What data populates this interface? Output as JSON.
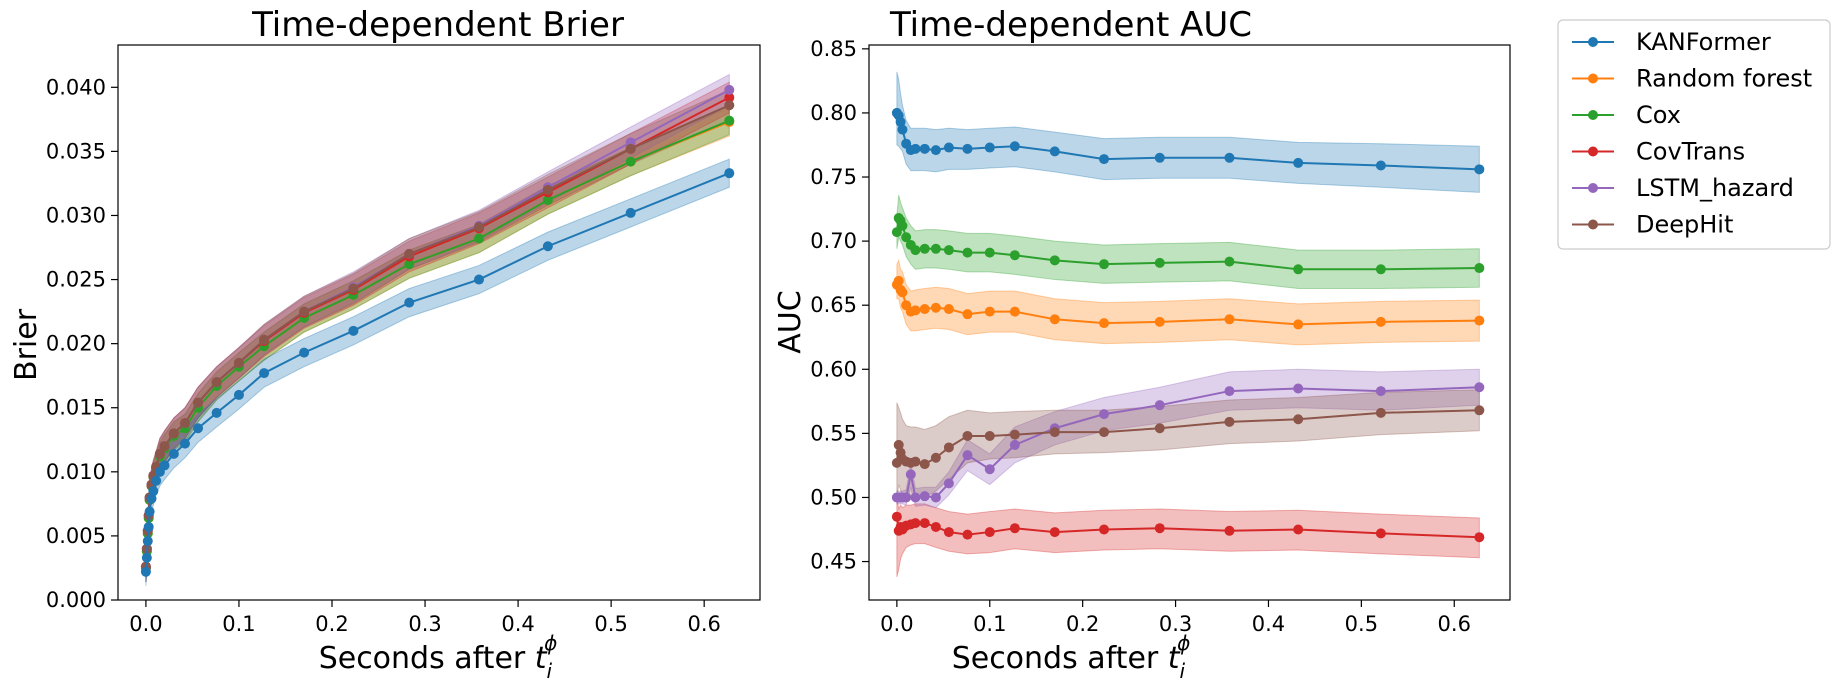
{
  "chart_data": [
    {
      "type": "line",
      "title": "Time-dependent Brier",
      "xlabel_prefix": "Seconds after ",
      "xlabel_var": "t",
      "xlabel_sub": "i",
      "xlabel_sup": "ϕ",
      "ylabel": "Brier",
      "xlim": [
        -0.03,
        0.66
      ],
      "ylim": [
        0.0,
        0.0433
      ],
      "xticks": [
        0.0,
        0.1,
        0.2,
        0.3,
        0.4,
        0.5,
        0.6
      ],
      "xtick_labels": [
        "0.0",
        "0.1",
        "0.2",
        "0.3",
        "0.4",
        "0.5",
        "0.6"
      ],
      "yticks": [
        0.0,
        0.005,
        0.01,
        0.015,
        0.02,
        0.025,
        0.03,
        0.035,
        0.04
      ],
      "ytick_labels": [
        "0.000",
        "0.005",
        "0.010",
        "0.015",
        "0.020",
        "0.025",
        "0.030",
        "0.035",
        "0.040"
      ],
      "x": [
        0.0,
        0.001,
        0.002,
        0.003,
        0.004,
        0.006,
        0.008,
        0.011,
        0.015,
        0.02,
        0.03,
        0.042,
        0.056,
        0.076,
        0.1,
        0.127,
        0.17,
        0.223,
        0.283,
        0.358,
        0.432,
        0.521,
        0.627
      ],
      "series": [
        {
          "name": "Random forest",
          "color": "#ff7f0e",
          "values": [
            0.0025,
            0.0038,
            0.0052,
            0.0064,
            0.0078,
            0.0089,
            0.0096,
            0.0102,
            0.0112,
            0.0118,
            0.0128,
            0.0134,
            0.015,
            0.0167,
            0.0182,
            0.0198,
            0.022,
            0.0238,
            0.0262,
            0.0282,
            0.0312,
            0.0342,
            0.0373
          ],
          "band": 0.0011
        },
        {
          "name": "Cox",
          "color": "#2ca02c",
          "values": [
            0.0025,
            0.0038,
            0.0052,
            0.0064,
            0.0078,
            0.0089,
            0.0096,
            0.0102,
            0.0112,
            0.0118,
            0.0128,
            0.0134,
            0.015,
            0.0167,
            0.0182,
            0.0198,
            0.022,
            0.0238,
            0.0262,
            0.0282,
            0.0312,
            0.0342,
            0.0374
          ],
          "band": 0.0011
        },
        {
          "name": "CovTrans",
          "color": "#d62728",
          "values": [
            0.0026,
            0.004,
            0.0054,
            0.0066,
            0.008,
            0.009,
            0.0097,
            0.0104,
            0.0114,
            0.012,
            0.013,
            0.0138,
            0.0154,
            0.017,
            0.0185,
            0.0202,
            0.0224,
            0.0242,
            0.0268,
            0.029,
            0.0318,
            0.0352,
            0.0392
          ],
          "band": 0.0012
        },
        {
          "name": "LSTM_hazard",
          "color": "#9467bd",
          "values": [
            0.0026,
            0.004,
            0.0054,
            0.0066,
            0.008,
            0.009,
            0.0097,
            0.0104,
            0.0114,
            0.012,
            0.013,
            0.0138,
            0.0154,
            0.017,
            0.0185,
            0.0203,
            0.0225,
            0.0244,
            0.027,
            0.0292,
            0.0322,
            0.0357,
            0.0398
          ],
          "band": 0.0012
        },
        {
          "name": "DeepHit",
          "color": "#8c564b",
          "values": [
            0.0026,
            0.004,
            0.0054,
            0.0066,
            0.008,
            0.009,
            0.0097,
            0.0104,
            0.0114,
            0.012,
            0.013,
            0.0138,
            0.0154,
            0.017,
            0.0185,
            0.0203,
            0.0225,
            0.0243,
            0.027,
            0.0291,
            0.032,
            0.0352,
            0.0386
          ],
          "band": 0.0012
        },
        {
          "name": "KANFormer",
          "color": "#1f77b4",
          "values": [
            0.0022,
            0.0033,
            0.0046,
            0.0057,
            0.0069,
            0.0079,
            0.0085,
            0.0093,
            0.01,
            0.0105,
            0.0114,
            0.0122,
            0.0134,
            0.0146,
            0.016,
            0.0177,
            0.0193,
            0.021,
            0.0232,
            0.025,
            0.0276,
            0.0302,
            0.0333
          ],
          "band": 0.0011
        }
      ]
    },
    {
      "type": "line",
      "title": "Time-dependent AUC",
      "xlabel_prefix": "Seconds after ",
      "xlabel_var": "t",
      "xlabel_sub": "i",
      "xlabel_sup": "ϕ",
      "ylabel": "AUC",
      "xlim": [
        -0.03,
        0.66
      ],
      "ylim": [
        0.42,
        0.853
      ],
      "xticks": [
        0.0,
        0.1,
        0.2,
        0.3,
        0.4,
        0.5,
        0.6
      ],
      "xtick_labels": [
        "0.0",
        "0.1",
        "0.2",
        "0.3",
        "0.4",
        "0.5",
        "0.6"
      ],
      "yticks": [
        0.45,
        0.5,
        0.55,
        0.6,
        0.65,
        0.7,
        0.75,
        0.8,
        0.85
      ],
      "ytick_labels": [
        "0.45",
        "0.50",
        "0.55",
        "0.60",
        "0.65",
        "0.70",
        "0.75",
        "0.80",
        "0.85"
      ],
      "x": [
        0.0,
        0.002,
        0.004,
        0.006,
        0.01,
        0.015,
        0.02,
        0.03,
        0.042,
        0.056,
        0.076,
        0.1,
        0.127,
        0.17,
        0.223,
        0.283,
        0.358,
        0.432,
        0.521,
        0.627
      ],
      "series": [
        {
          "name": "KANFormer",
          "color": "#1f77b4",
          "values": [
            0.8,
            0.798,
            0.793,
            0.787,
            0.776,
            0.771,
            0.772,
            0.772,
            0.771,
            0.773,
            0.772,
            0.773,
            0.774,
            0.77,
            0.764,
            0.765,
            0.765,
            0.761,
            0.759,
            0.756
          ],
          "upper": [
            0.832,
            0.826,
            0.815,
            0.806,
            0.794,
            0.788,
            0.788,
            0.788,
            0.787,
            0.788,
            0.787,
            0.788,
            0.789,
            0.785,
            0.78,
            0.781,
            0.781,
            0.777,
            0.776,
            0.774
          ],
          "lower": [
            0.775,
            0.774,
            0.772,
            0.77,
            0.76,
            0.755,
            0.755,
            0.755,
            0.754,
            0.756,
            0.756,
            0.757,
            0.758,
            0.754,
            0.748,
            0.749,
            0.749,
            0.745,
            0.742,
            0.738
          ]
        },
        {
          "name": "Random forest",
          "color": "#ff7f0e",
          "values": [
            0.666,
            0.669,
            0.662,
            0.66,
            0.65,
            0.645,
            0.646,
            0.647,
            0.648,
            0.647,
            0.643,
            0.645,
            0.645,
            0.639,
            0.636,
            0.637,
            0.639,
            0.635,
            0.637,
            0.638
          ],
          "upper": [
            0.682,
            0.685,
            0.678,
            0.676,
            0.666,
            0.661,
            0.662,
            0.663,
            0.664,
            0.663,
            0.659,
            0.661,
            0.661,
            0.655,
            0.652,
            0.653,
            0.655,
            0.651,
            0.653,
            0.654
          ],
          "lower": [
            0.655,
            0.655,
            0.648,
            0.645,
            0.635,
            0.63,
            0.63,
            0.631,
            0.632,
            0.631,
            0.627,
            0.629,
            0.629,
            0.623,
            0.62,
            0.621,
            0.623,
            0.619,
            0.621,
            0.622
          ]
        },
        {
          "name": "Cox",
          "color": "#2ca02c",
          "values": [
            0.707,
            0.718,
            0.716,
            0.712,
            0.703,
            0.697,
            0.693,
            0.694,
            0.694,
            0.693,
            0.691,
            0.691,
            0.689,
            0.685,
            0.682,
            0.683,
            0.684,
            0.678,
            0.678,
            0.679
          ],
          "upper": [
            0.72,
            0.736,
            0.73,
            0.726,
            0.718,
            0.712,
            0.708,
            0.709,
            0.709,
            0.708,
            0.706,
            0.706,
            0.704,
            0.7,
            0.697,
            0.698,
            0.699,
            0.693,
            0.693,
            0.694
          ],
          "lower": [
            0.694,
            0.703,
            0.7,
            0.697,
            0.688,
            0.682,
            0.678,
            0.679,
            0.679,
            0.678,
            0.676,
            0.676,
            0.674,
            0.67,
            0.667,
            0.668,
            0.669,
            0.663,
            0.663,
            0.664
          ]
        },
        {
          "name": "CovTrans",
          "color": "#d62728",
          "values": [
            0.485,
            0.474,
            0.477,
            0.475,
            0.478,
            0.479,
            0.48,
            0.48,
            0.477,
            0.473,
            0.471,
            0.473,
            0.476,
            0.473,
            0.475,
            0.476,
            0.474,
            0.475,
            0.472,
            0.469
          ],
          "upper": [
            0.5,
            0.491,
            0.494,
            0.492,
            0.494,
            0.494,
            0.495,
            0.495,
            0.492,
            0.489,
            0.487,
            0.489,
            0.491,
            0.488,
            0.49,
            0.491,
            0.489,
            0.49,
            0.487,
            0.484
          ],
          "lower": [
            0.438,
            0.444,
            0.452,
            0.456,
            0.461,
            0.463,
            0.464,
            0.464,
            0.461,
            0.458,
            0.456,
            0.457,
            0.46,
            0.457,
            0.459,
            0.46,
            0.458,
            0.459,
            0.456,
            0.453
          ]
        },
        {
          "name": "LSTM_hazard",
          "color": "#9467bd",
          "values": [
            0.5,
            0.5,
            0.5,
            0.5,
            0.5,
            0.518,
            0.5,
            0.501,
            0.5,
            0.511,
            0.533,
            0.522,
            0.541,
            0.554,
            0.565,
            0.572,
            0.583,
            0.585,
            0.583,
            0.586
          ],
          "upper": [
            0.505,
            0.505,
            0.505,
            0.505,
            0.506,
            0.526,
            0.507,
            0.508,
            0.508,
            0.52,
            0.545,
            0.534,
            0.555,
            0.567,
            0.578,
            0.586,
            0.598,
            0.6,
            0.598,
            0.6
          ],
          "lower": [
            0.495,
            0.495,
            0.495,
            0.495,
            0.494,
            0.508,
            0.493,
            0.494,
            0.492,
            0.502,
            0.521,
            0.51,
            0.527,
            0.541,
            0.552,
            0.558,
            0.568,
            0.57,
            0.568,
            0.572
          ]
        },
        {
          "name": "DeepHit",
          "color": "#8c564b",
          "values": [
            0.527,
            0.541,
            0.535,
            0.53,
            0.528,
            0.527,
            0.528,
            0.526,
            0.531,
            0.539,
            0.548,
            0.548,
            0.549,
            0.551,
            0.551,
            0.554,
            0.559,
            0.561,
            0.566,
            0.568
          ],
          "upper": [
            0.574,
            0.57,
            0.566,
            0.561,
            0.556,
            0.555,
            0.555,
            0.553,
            0.556,
            0.563,
            0.568,
            0.566,
            0.567,
            0.568,
            0.568,
            0.571,
            0.576,
            0.578,
            0.582,
            0.584
          ],
          "lower": [
            0.5,
            0.51,
            0.506,
            0.502,
            0.5,
            0.5,
            0.501,
            0.5,
            0.505,
            0.514,
            0.527,
            0.53,
            0.531,
            0.534,
            0.535,
            0.537,
            0.542,
            0.544,
            0.549,
            0.552
          ]
        }
      ]
    }
  ],
  "legend": {
    "placement": "upper-right-outside",
    "entries": [
      {
        "name": "KANFormer",
        "color": "#1f77b4"
      },
      {
        "name": "Random forest",
        "color": "#ff7f0e"
      },
      {
        "name": "Cox",
        "color": "#2ca02c"
      },
      {
        "name": "CovTrans",
        "color": "#d62728"
      },
      {
        "name": "LSTM_hazard",
        "color": "#9467bd"
      },
      {
        "name": "DeepHit",
        "color": "#8c564b"
      }
    ]
  }
}
